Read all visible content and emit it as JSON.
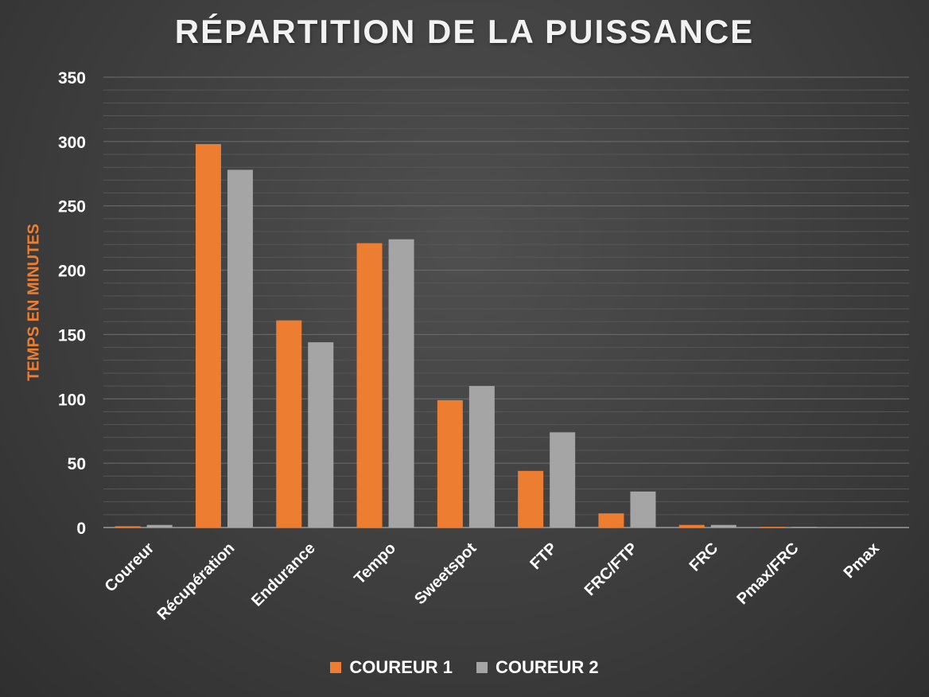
{
  "chart_data": {
    "type": "bar",
    "title": "RÉPARTITION DE LA PUISSANCE",
    "xlabel": "",
    "ylabel": "TEMPS EN MINUTES",
    "categories": [
      "Coureur",
      "Récupération",
      "Endurance",
      "Tempo",
      "Sweetspot",
      "FTP",
      "FRC/FTP",
      "FRC",
      "Pmax/FRC",
      "Pmax"
    ],
    "series": [
      {
        "name": "COUREUR 1",
        "color": "#ed7d31",
        "values": [
          1,
          298,
          161,
          221,
          99,
          44,
          11,
          2,
          0.5,
          0
        ]
      },
      {
        "name": "COUREUR 2",
        "color": "#a5a5a5",
        "values": [
          2,
          278,
          144,
          224,
          110,
          74,
          28,
          2,
          0.5,
          0
        ]
      }
    ],
    "ylim": [
      0,
      350
    ],
    "yticks": [
      0,
      50,
      100,
      150,
      200,
      250,
      300,
      350
    ],
    "grid": true,
    "legend_position": "bottom"
  }
}
